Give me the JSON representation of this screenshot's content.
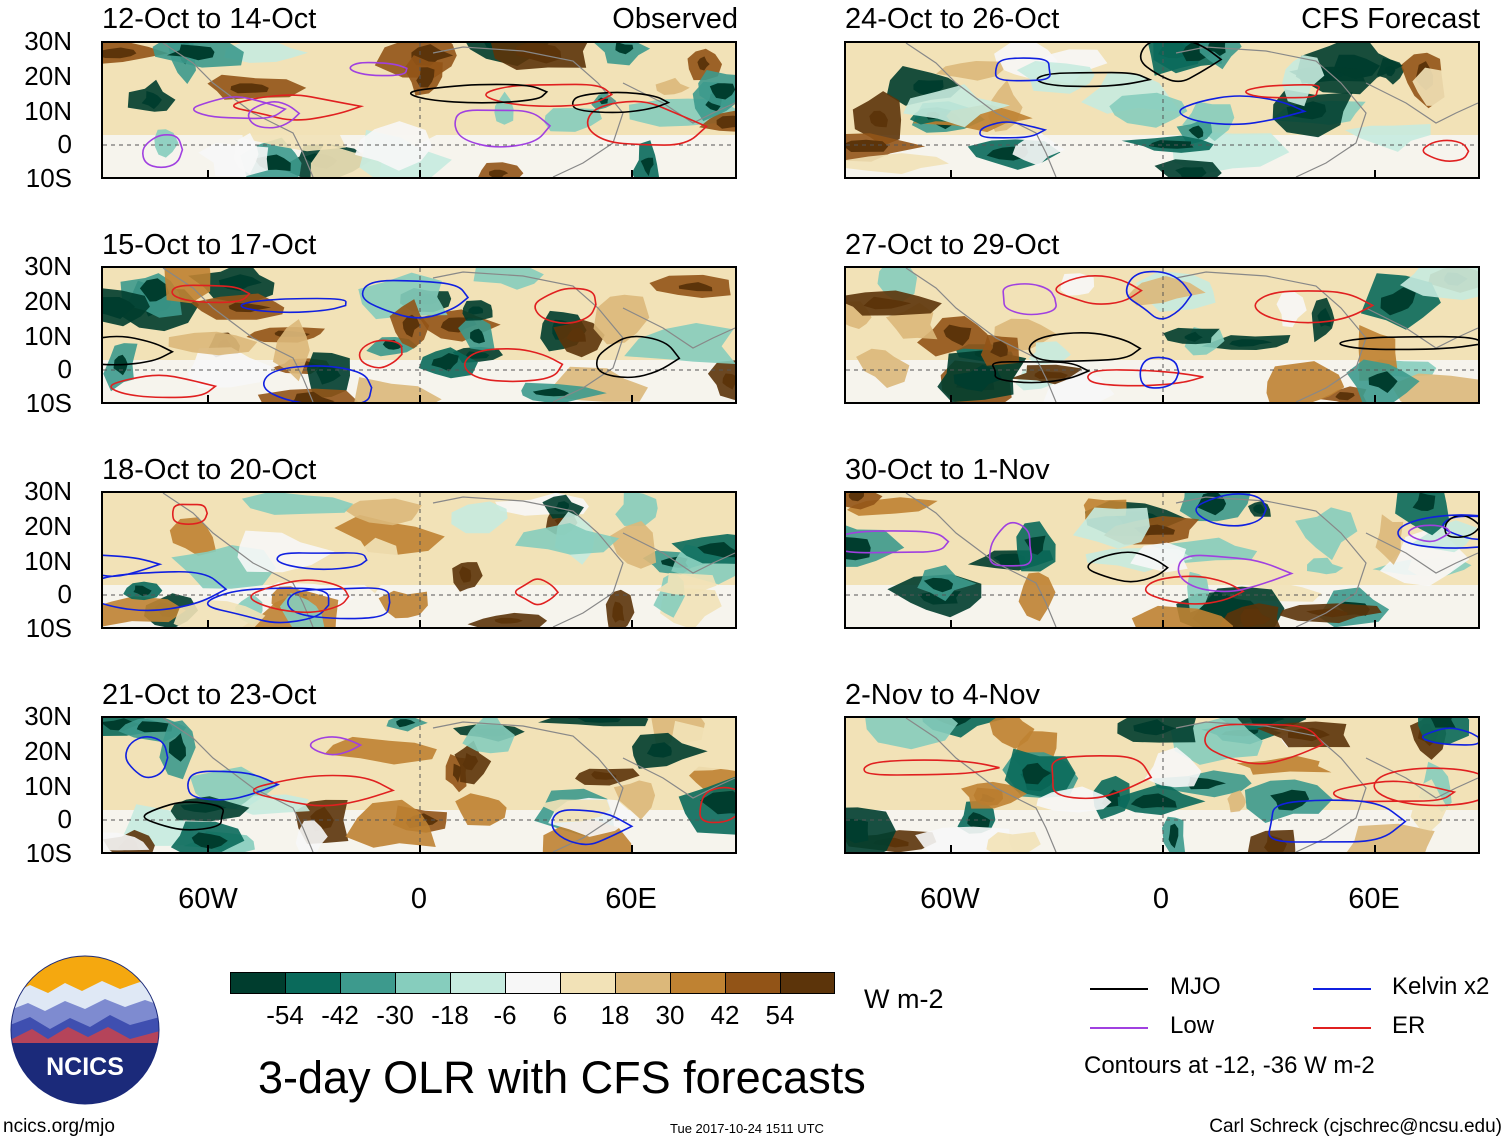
{
  "left_column": {
    "header": "Observed",
    "panels": [
      {
        "title": "12-Oct to 14-Oct"
      },
      {
        "title": "15-Oct to 17-Oct"
      },
      {
        "title": "18-Oct to 20-Oct"
      },
      {
        "title": "21-Oct to 23-Oct"
      }
    ]
  },
  "right_column": {
    "header": "CFS Forecast",
    "panels": [
      {
        "title": "24-Oct to 26-Oct"
      },
      {
        "title": "27-Oct to 29-Oct"
      },
      {
        "title": "30-Oct to 1-Nov"
      },
      {
        "title": "2-Nov to 4-Nov"
      }
    ]
  },
  "axes": {
    "lat_labels": [
      "30N",
      "20N",
      "10N",
      "0",
      "10S"
    ],
    "lon_labels": [
      "60W",
      "0",
      "60E"
    ]
  },
  "colorbar": {
    "colors": [
      "#003d2e",
      "#0a6a5b",
      "#3d9a8d",
      "#86cdbd",
      "#c6ebdf",
      "#f7f7f7",
      "#f2e2b7",
      "#dcb87a",
      "#bf8232",
      "#925417",
      "#5c340a"
    ],
    "tick_labels": [
      "-54",
      "-42",
      "-30",
      "-18",
      "-6",
      "6",
      "18",
      "30",
      "42",
      "54"
    ],
    "units": "W m-2"
  },
  "main_title": "3-day OLR with CFS forecasts",
  "legend": {
    "items": [
      {
        "name": "MJO",
        "color": "#000000"
      },
      {
        "name": "Kelvin x2",
        "color": "#1020e0"
      },
      {
        "name": "Low",
        "color": "#a040e0"
      },
      {
        "name": "ER",
        "color": "#e02020"
      }
    ],
    "note": "Contours at -12, -36 W m-2"
  },
  "logo_text": "NCICS",
  "footer": {
    "left": "ncics.org/mjo",
    "center": "Tue 2017-10-24 1511 UTC",
    "right": "Carl Schreck (cjschrec@ncsu.edu)"
  }
}
